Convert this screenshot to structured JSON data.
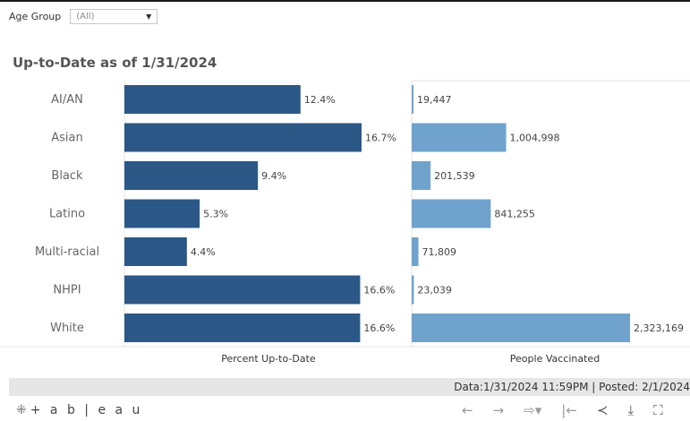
{
  "filter": {
    "label": "Age Group",
    "value": "(All)"
  },
  "title": "Up-to-Date as of 1/31/2024",
  "chart_data": {
    "type": "bar",
    "orientation": "horizontal",
    "categories": [
      "AI/AN",
      "Asian",
      "Black",
      "Latino",
      "Multi-racial",
      "NHPI",
      "White"
    ],
    "series": [
      {
        "name": "Percent Up-to-Date",
        "values": [
          12.4,
          16.7,
          9.4,
          5.3,
          4.4,
          16.6,
          16.6
        ],
        "labels": [
          "12.4%",
          "16.7%",
          "9.4%",
          "5.3%",
          "4.4%",
          "16.6%",
          "16.6%"
        ],
        "color": "#2b5887"
      },
      {
        "name": "People Vaccinated",
        "values": [
          19447,
          1004998,
          201539,
          841255,
          71809,
          23039,
          2323169
        ],
        "labels": [
          "19,447",
          "1,004,998",
          "201,539",
          "841,255",
          "71,809",
          "23,039",
          "2,323,169"
        ],
        "color": "#6fa3cd"
      }
    ],
    "xlabel_left": "Percent Up-to-Date",
    "xlabel_right": "People Vaccinated",
    "xlim_left": [
      0,
      16.7
    ],
    "xlim_right": [
      0,
      2323169
    ],
    "grid": false
  },
  "footer": {
    "text": "Data:1/31/2024 11:59PM | Posted: 2/1/2024"
  },
  "toolbar": {
    "brand": "+ a b | e a u",
    "icons": [
      "brand-icon",
      "undo-icon",
      "redo-icon",
      "revert-icon",
      "reset-icon",
      "share-icon",
      "download-icon",
      "fullscreen-icon"
    ]
  }
}
